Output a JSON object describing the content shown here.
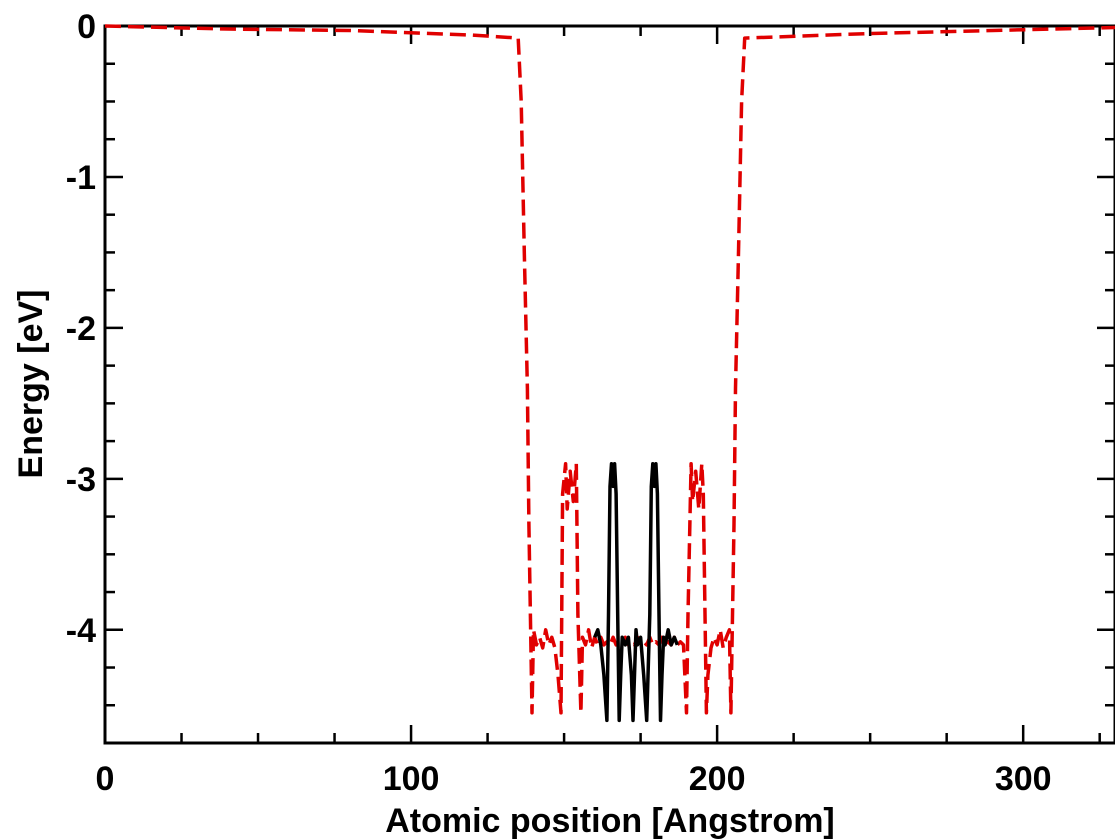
{
  "chart_data": {
    "type": "line",
    "title": "",
    "xlabel": "Atomic position [Angstrom]",
    "ylabel": "Energy [eV]",
    "xlim": [
      0,
      330
    ],
    "ylim": [
      -4.75,
      0
    ],
    "x_ticks": [
      0,
      100,
      200,
      300
    ],
    "x_tick_labels": [
      "0",
      "100",
      "200",
      "300"
    ],
    "y_ticks": [
      0,
      -1,
      -2,
      -3,
      -4
    ],
    "y_tick_labels": [
      "0",
      "-1",
      "-2",
      "-3",
      "-4"
    ],
    "grid": false,
    "series": [
      {
        "color": "#e00000",
        "style": "dashed",
        "x": [
          0,
          40,
          80,
          120,
          135,
          136,
          137,
          138,
          138.5,
          139.5,
          140,
          141,
          142,
          143,
          144,
          145,
          146,
          147,
          148,
          149,
          149.5,
          150.5,
          151,
          152,
          153,
          154,
          154.5,
          155.5,
          156,
          157,
          158,
          159,
          160,
          161,
          162,
          163,
          164,
          165,
          166,
          167,
          168,
          169,
          170,
          171,
          172,
          173,
          174,
          175,
          176,
          177,
          178,
          179,
          180,
          181,
          182,
          183,
          184,
          185,
          186,
          187,
          188,
          189,
          190,
          190.5,
          191.5,
          192,
          193,
          194,
          195,
          195.5,
          196.5,
          197,
          198,
          199,
          200,
          201,
          202,
          203,
          204,
          204.5,
          205.5,
          206,
          207,
          208,
          209,
          250,
          290,
          330
        ],
        "y": [
          0,
          -0.02,
          -0.03,
          -0.06,
          -0.08,
          -0.5,
          -1.5,
          -2.4,
          -3.3,
          -4.55,
          -4.0,
          -4.1,
          -4.05,
          -4.12,
          -4.0,
          -4.1,
          -4.05,
          -4.12,
          -4.3,
          -4.55,
          -3.1,
          -2.9,
          -3.2,
          -2.95,
          -3.15,
          -2.9,
          -3.9,
          -4.55,
          -4.05,
          -4.1,
          -4.0,
          -4.12,
          -4.05,
          -4.1,
          -4.05,
          -4.1,
          -4.08,
          -4.1,
          -4.05,
          -4.1,
          -4.08,
          -4.1,
          -4.05,
          -4.1,
          -4.08,
          -4.1,
          -4.05,
          -4.1,
          -4.08,
          -4.1,
          -4.05,
          -4.1,
          -4.08,
          -4.1,
          -4.05,
          -4.1,
          -4.08,
          -4.1,
          -4.05,
          -4.1,
          -4.08,
          -4.1,
          -4.55,
          -3.9,
          -2.9,
          -3.15,
          -2.95,
          -3.2,
          -2.9,
          -3.1,
          -4.55,
          -4.3,
          -4.12,
          -4.05,
          -4.1,
          -4.0,
          -4.12,
          -4.05,
          -4.0,
          -4.55,
          -3.3,
          -2.4,
          -1.5,
          -0.5,
          -0.08,
          -0.05,
          -0.03,
          -0.01
        ]
      },
      {
        "color": "#000000",
        "style": "solid",
        "x": [
          160,
          161,
          162,
          163,
          164,
          164.5,
          165,
          165.5,
          166,
          166.5,
          167,
          167.5,
          168,
          168.5,
          169,
          170,
          171,
          172,
          172.5,
          173,
          173.5,
          174,
          175,
          176,
          177,
          178,
          178.5,
          179,
          179.5,
          180,
          180.5,
          181,
          181.5,
          182,
          182.5,
          183,
          184,
          185,
          186,
          187
        ],
        "y": [
          -4.05,
          -4.0,
          -4.1,
          -4.3,
          -4.6,
          -3.9,
          -3.05,
          -2.9,
          -3.05,
          -2.9,
          -3.1,
          -3.9,
          -4.6,
          -4.3,
          -4.05,
          -4.1,
          -4.05,
          -4.3,
          -4.6,
          -4.3,
          -4.0,
          -4.1,
          -4.05,
          -4.3,
          -4.6,
          -3.9,
          -3.05,
          -2.9,
          -3.05,
          -2.9,
          -3.1,
          -3.9,
          -4.6,
          -4.3,
          -4.05,
          -4.1,
          -4.0,
          -4.1,
          -4.05,
          -4.1
        ]
      }
    ]
  }
}
